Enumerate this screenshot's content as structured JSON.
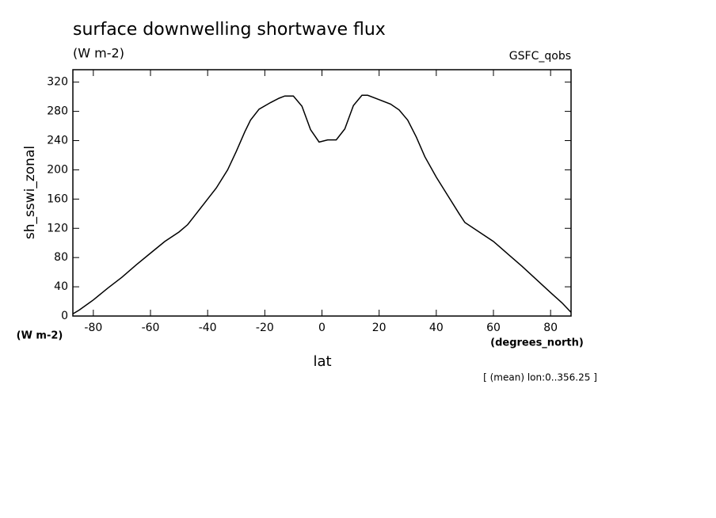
{
  "chart_data": {
    "type": "line",
    "title": "surface downwelling shortwave flux",
    "subtitle": "(W m-2)",
    "source": "GSFC_qobs",
    "ylabel": "sh_sswi_zonal",
    "yunits": "(W m-2)",
    "xlabel": "lat",
    "xunits": "(degrees_north)",
    "annotation": "[ (mean) lon:0..356.25 ]",
    "x": [
      -87.16,
      -85,
      -80,
      -75,
      -70,
      -65,
      -60,
      -55,
      -50,
      -47,
      -45,
      -40,
      -37,
      -33,
      -30,
      -27,
      -25,
      -22,
      -18,
      -15,
      -13,
      -10,
      -7,
      -4,
      -1,
      2,
      5,
      8,
      11,
      14,
      16,
      20,
      24,
      27,
      30,
      33,
      36,
      40,
      44,
      48,
      50,
      55,
      60,
      65,
      70,
      75,
      80,
      84,
      87.16
    ],
    "series": [
      {
        "color": "#000000",
        "values": [
          3,
          8,
          22,
          38,
          53,
          70,
          86,
          102,
          115,
          125,
          135,
          160,
          175,
          200,
          225,
          252,
          268,
          283,
          292,
          298,
          301,
          301,
          287,
          255,
          238,
          241,
          241,
          256,
          288,
          302,
          302,
          296,
          290,
          282,
          268,
          245,
          218,
          190,
          165,
          140,
          128,
          115,
          102,
          85,
          68,
          50,
          32,
          18,
          5
        ]
      }
    ],
    "xlim": [
      -87.16,
      87.16
    ],
    "ylim": [
      0,
      337
    ],
    "xticks": [
      -80,
      -60,
      -40,
      -20,
      0,
      20,
      40,
      60,
      80
    ],
    "yticks": [
      0,
      40,
      80,
      120,
      160,
      200,
      240,
      280,
      320
    ],
    "grid": false
  }
}
